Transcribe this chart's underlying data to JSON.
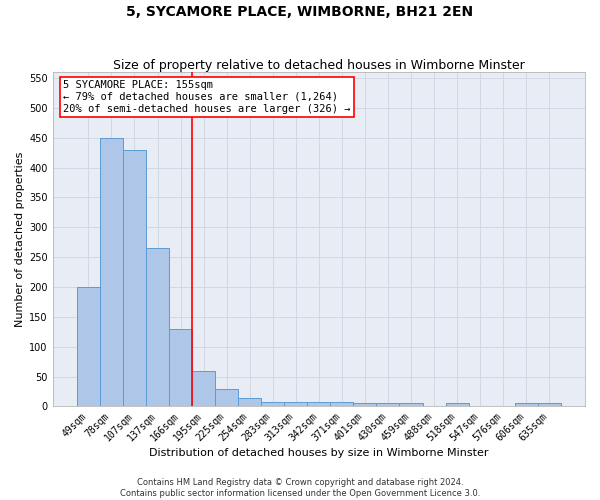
{
  "title": "5, SYCAMORE PLACE, WIMBORNE, BH21 2EN",
  "subtitle": "Size of property relative to detached houses in Wimborne Minster",
  "xlabel": "Distribution of detached houses by size in Wimborne Minster",
  "ylabel": "Number of detached properties",
  "footnote1": "Contains HM Land Registry data © Crown copyright and database right 2024.",
  "footnote2": "Contains public sector information licensed under the Open Government Licence 3.0.",
  "categories": [
    "49sqm",
    "78sqm",
    "107sqm",
    "137sqm",
    "166sqm",
    "195sqm",
    "225sqm",
    "254sqm",
    "283sqm",
    "313sqm",
    "342sqm",
    "371sqm",
    "401sqm",
    "430sqm",
    "459sqm",
    "488sqm",
    "518sqm",
    "547sqm",
    "576sqm",
    "606sqm",
    "635sqm"
  ],
  "values": [
    200,
    450,
    430,
    265,
    130,
    60,
    30,
    15,
    7,
    7,
    7,
    7,
    5,
    5,
    5,
    0,
    5,
    0,
    0,
    5,
    5
  ],
  "bar_color": "#aec6e8",
  "bar_edge_color": "#5b9bd5",
  "vline_color": "red",
  "vline_x_index": 4.5,
  "annotation_line1": "5 SYCAMORE PLACE: 155sqm",
  "annotation_line2": "← 79% of detached houses are smaller (1,264)",
  "annotation_line3": "20% of semi-detached houses are larger (326) →",
  "annotation_box_color": "white",
  "annotation_box_edge_color": "red",
  "ylim": [
    0,
    560
  ],
  "yticks": [
    0,
    50,
    100,
    150,
    200,
    250,
    300,
    350,
    400,
    450,
    500,
    550
  ],
  "grid_color": "#cdd5e0",
  "background_color": "#e8edf5",
  "title_fontsize": 10,
  "subtitle_fontsize": 9,
  "xlabel_fontsize": 8,
  "ylabel_fontsize": 8,
  "tick_fontsize": 7,
  "annotation_fontsize": 7.5,
  "footnote_fontsize": 6
}
